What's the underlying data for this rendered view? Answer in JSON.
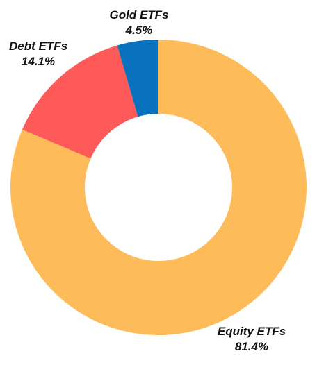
{
  "chart_data": {
    "type": "pie",
    "style": "donut",
    "categories": [
      "Equity ETFs",
      "Debt ETFs",
      "Gold ETFs"
    ],
    "values": [
      81.4,
      14.1,
      4.5
    ],
    "value_labels": [
      "81.4%",
      "14.1%",
      "4.5%"
    ],
    "colors": [
      "#FDBB5A",
      "#FF5A5A",
      "#0872BE"
    ],
    "title": "",
    "legend": "none"
  }
}
